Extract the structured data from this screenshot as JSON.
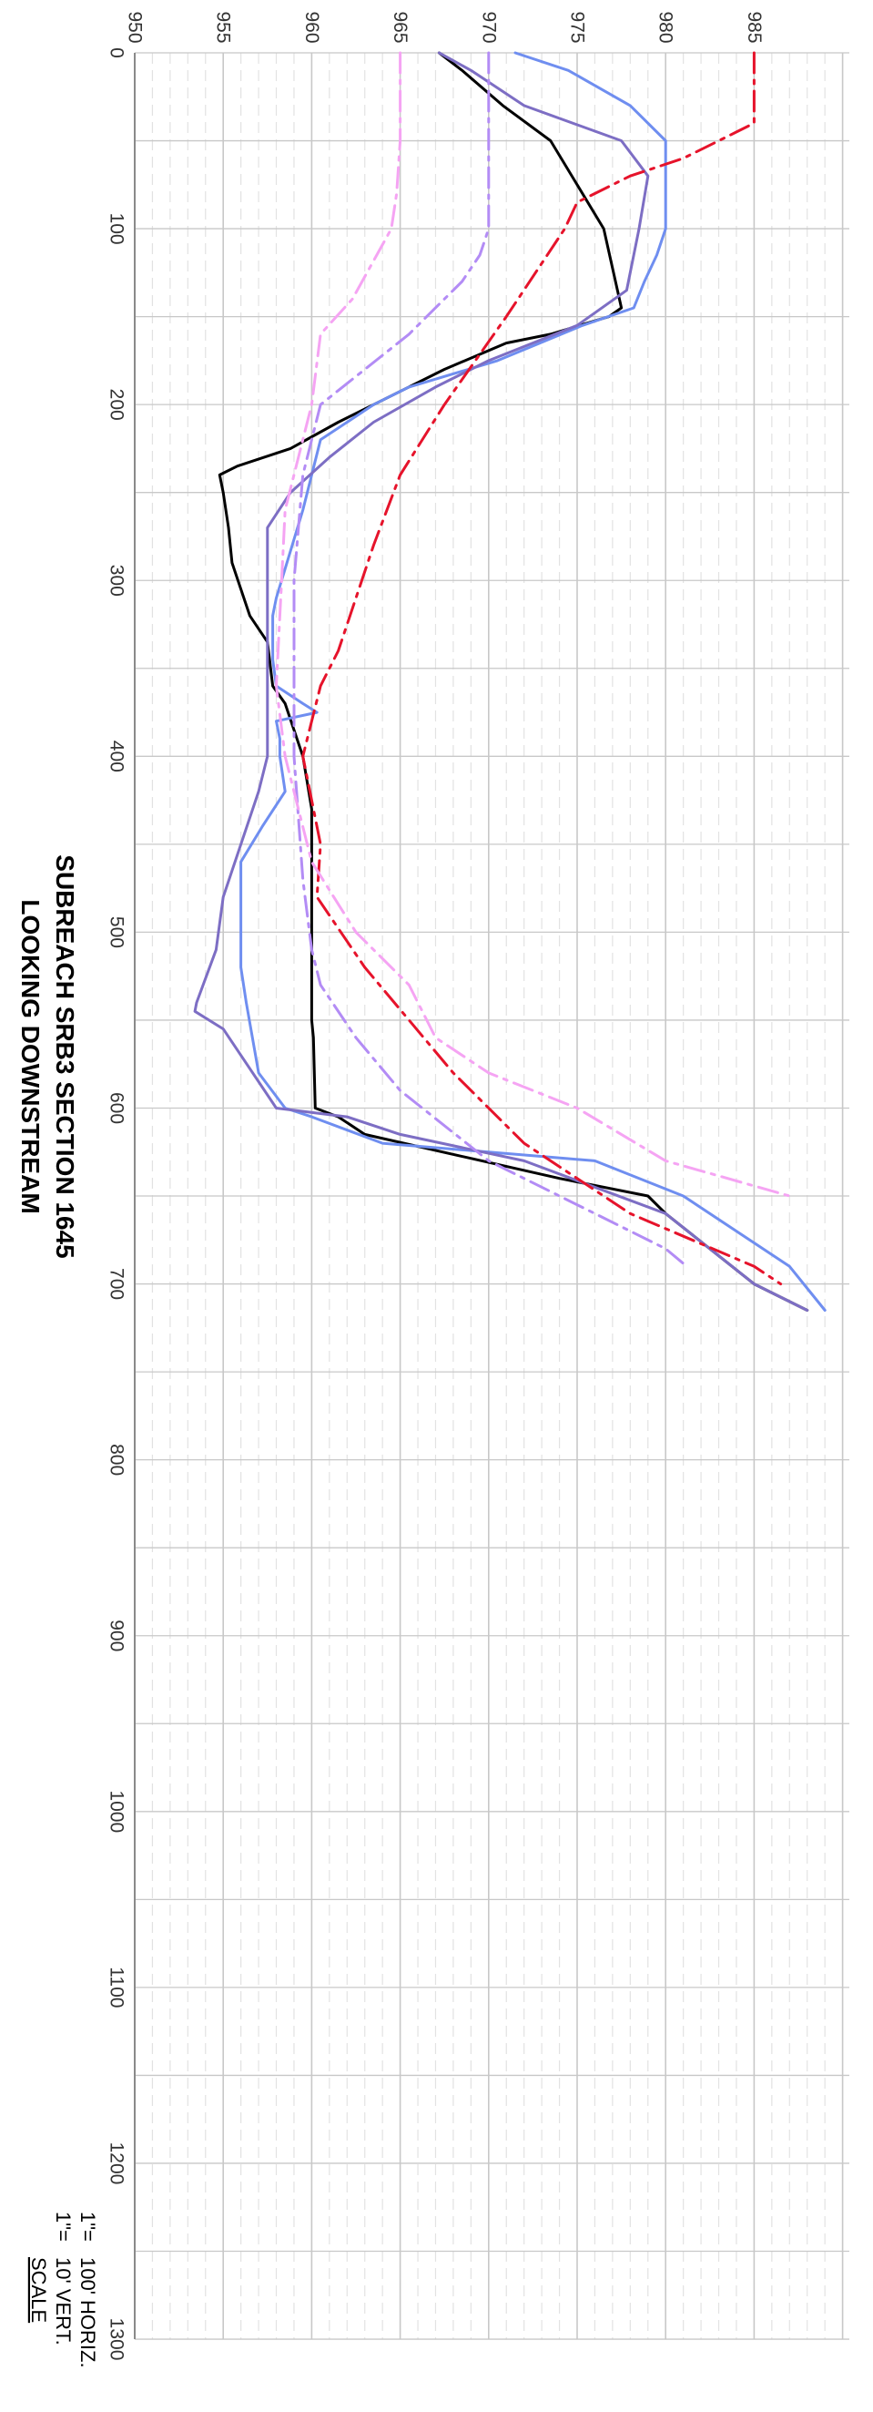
{
  "chart_data": {
    "type": "line",
    "title": "SUBREACH SRB3 SECTION 1645",
    "subtitle": "LOOKING DOWNSTREAM",
    "xlabel": "",
    "ylabel": "",
    "xlim": [
      0,
      1300
    ],
    "ylim": [
      950,
      990
    ],
    "x_ticks": [
      "0",
      "100",
      "200",
      "300",
      "400",
      "500",
      "600",
      "700",
      "800",
      "900",
      "1000",
      "1100",
      "1200",
      "1300"
    ],
    "y_ticks": [
      "950",
      "955",
      "960",
      "965",
      "970",
      "975",
      "980",
      "985"
    ],
    "grid": true,
    "scale": {
      "heading": "SCALE",
      "vert_num": "1\"=",
      "vert_val": "10' VERT.",
      "horiz_num": "1\"=",
      "horiz_val": "100' HORIZ."
    },
    "series": [
      {
        "color": "#000000",
        "dash": "solid",
        "points": [
          [
            0,
            967.2
          ],
          [
            10,
            968.5
          ],
          [
            30,
            970.8
          ],
          [
            50,
            973.5
          ],
          [
            100,
            976.5
          ],
          [
            145,
            977.5
          ],
          [
            150,
            976.8
          ],
          [
            160,
            973.5
          ],
          [
            165,
            971.0
          ],
          [
            180,
            967.5
          ],
          [
            200,
            963.5
          ],
          [
            210,
            961.5
          ],
          [
            225,
            958.8
          ],
          [
            235,
            955.8
          ],
          [
            240,
            954.8
          ],
          [
            250,
            955.0
          ],
          [
            270,
            955.3
          ],
          [
            290,
            955.5
          ],
          [
            320,
            956.5
          ],
          [
            335,
            957.5
          ],
          [
            360,
            957.8
          ],
          [
            370,
            958.5
          ],
          [
            400,
            959.5
          ],
          [
            430,
            960.0
          ],
          [
            500,
            960.0
          ],
          [
            550,
            960.0
          ],
          [
            560,
            960.1
          ],
          [
            600,
            960.2
          ],
          [
            605,
            961.5
          ],
          [
            615,
            963.0
          ],
          [
            640,
            974.0
          ],
          [
            650,
            979.0
          ],
          [
            660,
            980.0
          ],
          [
            700,
            985.0
          ],
          [
            715,
            988.0
          ]
        ]
      },
      {
        "color": "#6f8ef0",
        "dash": "solid",
        "points": [
          [
            0,
            971.5
          ],
          [
            10,
            974.5
          ],
          [
            30,
            978.0
          ],
          [
            50,
            980.0
          ],
          [
            100,
            980.0
          ],
          [
            115,
            979.5
          ],
          [
            130,
            978.8
          ],
          [
            145,
            978.2
          ],
          [
            155,
            975.3
          ],
          [
            175,
            970.5
          ],
          [
            190,
            965.5
          ],
          [
            200,
            963.5
          ],
          [
            220,
            960.5
          ],
          [
            260,
            959.5
          ],
          [
            310,
            958.0
          ],
          [
            320,
            957.8
          ],
          [
            330,
            957.8
          ],
          [
            345,
            957.8
          ],
          [
            360,
            958.0
          ],
          [
            370,
            959.5
          ],
          [
            375,
            960.3
          ],
          [
            380,
            958.0
          ],
          [
            390,
            958.2
          ],
          [
            400,
            958.2
          ],
          [
            420,
            958.5
          ],
          [
            440,
            957.2
          ],
          [
            460,
            956.0
          ],
          [
            520,
            956.0
          ],
          [
            540,
            956.3
          ],
          [
            580,
            957.0
          ],
          [
            600,
            958.5
          ],
          [
            605,
            960.0
          ],
          [
            620,
            964.0
          ],
          [
            630,
            976.0
          ],
          [
            650,
            981.0
          ],
          [
            690,
            987.0
          ],
          [
            715,
            989.0
          ]
        ]
      },
      {
        "color": "#7d6ec4",
        "dash": "solid",
        "points": [
          [
            0,
            967.2
          ],
          [
            10,
            969.0
          ],
          [
            30,
            972.0
          ],
          [
            50,
            977.5
          ],
          [
            70,
            979.0
          ],
          [
            100,
            978.5
          ],
          [
            135,
            977.8
          ],
          [
            155,
            975.0
          ],
          [
            175,
            970.0
          ],
          [
            190,
            967.0
          ],
          [
            210,
            963.5
          ],
          [
            230,
            961.0
          ],
          [
            250,
            958.8
          ],
          [
            270,
            957.5
          ],
          [
            300,
            957.5
          ],
          [
            340,
            957.5
          ],
          [
            400,
            957.5
          ],
          [
            420,
            957.0
          ],
          [
            480,
            955.0
          ],
          [
            510,
            954.6
          ],
          [
            540,
            953.5
          ],
          [
            545,
            953.4
          ],
          [
            555,
            955.0
          ],
          [
            600,
            958.0
          ],
          [
            605,
            962.0
          ],
          [
            615,
            965.0
          ],
          [
            630,
            972.0
          ],
          [
            660,
            980.0
          ],
          [
            700,
            985.0
          ],
          [
            715,
            988.0
          ]
        ]
      },
      {
        "color": "#e6132b",
        "dash": "dashdot",
        "points": [
          [
            0,
            985.0
          ],
          [
            40,
            985.0
          ],
          [
            45,
            984.0
          ],
          [
            60,
            981.0
          ],
          [
            70,
            978.0
          ],
          [
            85,
            975.0
          ],
          [
            100,
            974.3
          ],
          [
            150,
            971.0
          ],
          [
            200,
            967.5
          ],
          [
            240,
            965.0
          ],
          [
            280,
            963.5
          ],
          [
            340,
            961.5
          ],
          [
            360,
            960.5
          ],
          [
            400,
            959.5
          ],
          [
            450,
            960.5
          ],
          [
            480,
            960.3
          ],
          [
            520,
            963.0
          ],
          [
            580,
            968.0
          ],
          [
            620,
            972.0
          ],
          [
            660,
            978.0
          ],
          [
            690,
            985.0
          ],
          [
            700,
            986.5
          ]
        ]
      },
      {
        "color": "#b38cf5",
        "dash": "dashdot",
        "points": [
          [
            0,
            970.0
          ],
          [
            50,
            970.0
          ],
          [
            100,
            970.0
          ],
          [
            115,
            969.5
          ],
          [
            130,
            968.5
          ],
          [
            160,
            965.5
          ],
          [
            200,
            960.5
          ],
          [
            240,
            959.5
          ],
          [
            300,
            959.0
          ],
          [
            400,
            959.0
          ],
          [
            470,
            959.5
          ],
          [
            510,
            960.0
          ],
          [
            530,
            960.5
          ],
          [
            560,
            962.5
          ],
          [
            590,
            965.0
          ],
          [
            630,
            970.0
          ],
          [
            680,
            980.0
          ],
          [
            690,
            981.2
          ]
        ]
      },
      {
        "color": "#f5a4f3",
        "dash": "dashdot",
        "points": [
          [
            0,
            965.0
          ],
          [
            50,
            965.0
          ],
          [
            80,
            964.8
          ],
          [
            100,
            964.5
          ],
          [
            140,
            962.3
          ],
          [
            160,
            960.5
          ],
          [
            200,
            960.0
          ],
          [
            260,
            958.5
          ],
          [
            300,
            958.3
          ],
          [
            360,
            958.0
          ],
          [
            400,
            958.5
          ],
          [
            460,
            960.0
          ],
          [
            500,
            962.5
          ],
          [
            530,
            965.5
          ],
          [
            560,
            967.0
          ],
          [
            580,
            970.0
          ],
          [
            600,
            975.0
          ],
          [
            630,
            980.0
          ],
          [
            650,
            987.0
          ]
        ]
      }
    ]
  }
}
